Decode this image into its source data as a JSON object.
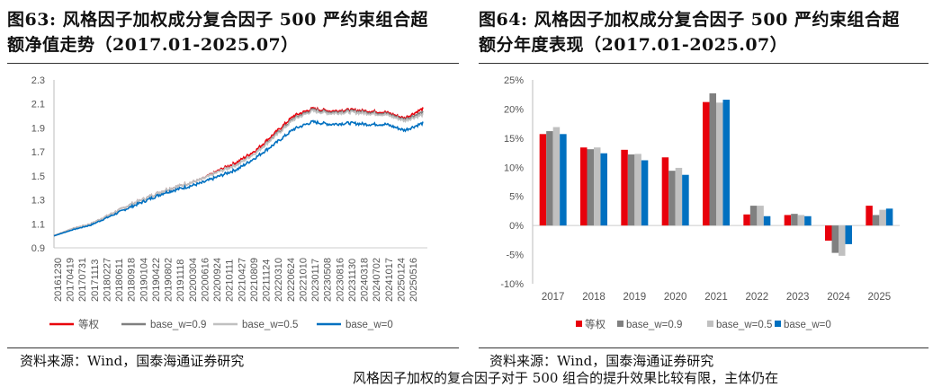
{
  "left": {
    "title_line1": "图63:  风格因子加权成分复合因子  500  严约束组合超",
    "title_line2": "额净值走势（2017.01-2025.07）",
    "source": "资料来源：Wind，国泰海通证券研究"
  },
  "right": {
    "title_line1": "图64:  风格因子加权成分复合因子  500  严约束组合超",
    "title_line2": "额分年度表现（2017.01-2025.07）",
    "source": "资料来源：Wind，国泰海通证券研究"
  },
  "footer_text": "风格因子加权的复合因子对于 500 组合的提升效果比较有限，主体仍在",
  "colors": {
    "等权": "#e8000b",
    "base_w=0.9": "#808080",
    "base_w=0.5": "#c0c0c0",
    "base_w=0": "#0070c0"
  },
  "chart_data": [
    {
      "type": "line",
      "title": "",
      "ylim": [
        0.9,
        2.3
      ],
      "yticks": [
        "0.9",
        "1.1",
        "1.3",
        "1.5",
        "1.7",
        "1.9",
        "2.1",
        "2.3"
      ],
      "xticks": [
        "20161230",
        "20170419",
        "20170731",
        "20171113",
        "20180227",
        "20180611",
        "20180918",
        "20190104",
        "20190422",
        "20190802",
        "20191118",
        "20200304",
        "20200616",
        "20200924",
        "20210111",
        "20210427",
        "20210809",
        "20211124",
        "20220310",
        "20220624",
        "20221010",
        "20230117",
        "20230508",
        "20230816",
        "20231130",
        "20240318",
        "20240702",
        "20241017",
        "20250124",
        "20250516"
      ],
      "legend": [
        "等权",
        "base_w=0.9",
        "base_w=0.5",
        "base_w=0"
      ],
      "series": [
        {
          "name": "等权",
          "t": [
            0,
            0.05,
            0.1,
            0.2,
            0.3,
            0.4,
            0.45,
            0.5,
            0.55,
            0.6,
            0.65,
            0.7,
            0.75,
            0.8,
            0.85,
            0.9,
            0.95,
            1.0
          ],
          "values": [
            1.0,
            1.06,
            1.1,
            1.25,
            1.38,
            1.47,
            1.55,
            1.62,
            1.72,
            1.86,
            2.0,
            2.06,
            2.04,
            2.05,
            2.04,
            2.03,
            1.98,
            2.06
          ]
        },
        {
          "name": "base_w=0.9",
          "t": [
            0,
            0.05,
            0.1,
            0.2,
            0.3,
            0.4,
            0.45,
            0.5,
            0.55,
            0.6,
            0.65,
            0.7,
            0.75,
            0.8,
            0.85,
            0.9,
            0.95,
            1.0
          ],
          "values": [
            1.0,
            1.06,
            1.1,
            1.25,
            1.38,
            1.47,
            1.54,
            1.6,
            1.7,
            1.84,
            1.98,
            2.05,
            2.03,
            2.04,
            2.03,
            2.02,
            1.97,
            2.03
          ]
        },
        {
          "name": "base_w=0.5",
          "t": [
            0,
            0.05,
            0.1,
            0.2,
            0.3,
            0.4,
            0.45,
            0.5,
            0.55,
            0.6,
            0.65,
            0.7,
            0.75,
            0.8,
            0.85,
            0.9,
            0.95,
            1.0
          ],
          "values": [
            1.0,
            1.06,
            1.1,
            1.25,
            1.38,
            1.47,
            1.54,
            1.6,
            1.7,
            1.83,
            1.97,
            2.04,
            2.02,
            2.03,
            2.02,
            2.01,
            1.96,
            2.01
          ]
        },
        {
          "name": "base_w=0",
          "t": [
            0,
            0.05,
            0.1,
            0.2,
            0.3,
            0.4,
            0.45,
            0.5,
            0.55,
            0.6,
            0.65,
            0.7,
            0.75,
            0.8,
            0.85,
            0.9,
            0.95,
            1.0
          ],
          "values": [
            1.0,
            1.05,
            1.09,
            1.23,
            1.36,
            1.44,
            1.5,
            1.56,
            1.66,
            1.77,
            1.89,
            1.95,
            1.93,
            1.94,
            1.93,
            1.93,
            1.88,
            1.94
          ]
        }
      ]
    },
    {
      "type": "bar",
      "title": "",
      "ylim": [
        -10,
        25
      ],
      "yticks": [
        "-10%",
        "-5%",
        "0%",
        "5%",
        "10%",
        "15%",
        "20%",
        "25%"
      ],
      "categories": [
        "2017",
        "2018",
        "2019",
        "2020",
        "2021",
        "2022",
        "2023",
        "2024",
        "2025"
      ],
      "series": [
        {
          "name": "等权",
          "values": [
            15.7,
            13.4,
            13.0,
            11.7,
            21.2,
            1.9,
            1.8,
            -2.6,
            3.4
          ]
        },
        {
          "name": "base_w=0.9",
          "values": [
            16.2,
            13.1,
            12.2,
            9.4,
            22.7,
            3.4,
            2.0,
            -4.7,
            1.8
          ]
        },
        {
          "name": "base_w=0.5",
          "values": [
            16.9,
            13.4,
            12.3,
            9.9,
            21.1,
            3.4,
            1.8,
            -5.2,
            2.7
          ]
        },
        {
          "name": "base_w=0",
          "values": [
            15.7,
            12.4,
            11.2,
            8.7,
            21.6,
            1.6,
            1.6,
            -3.2,
            2.9
          ]
        }
      ]
    }
  ]
}
